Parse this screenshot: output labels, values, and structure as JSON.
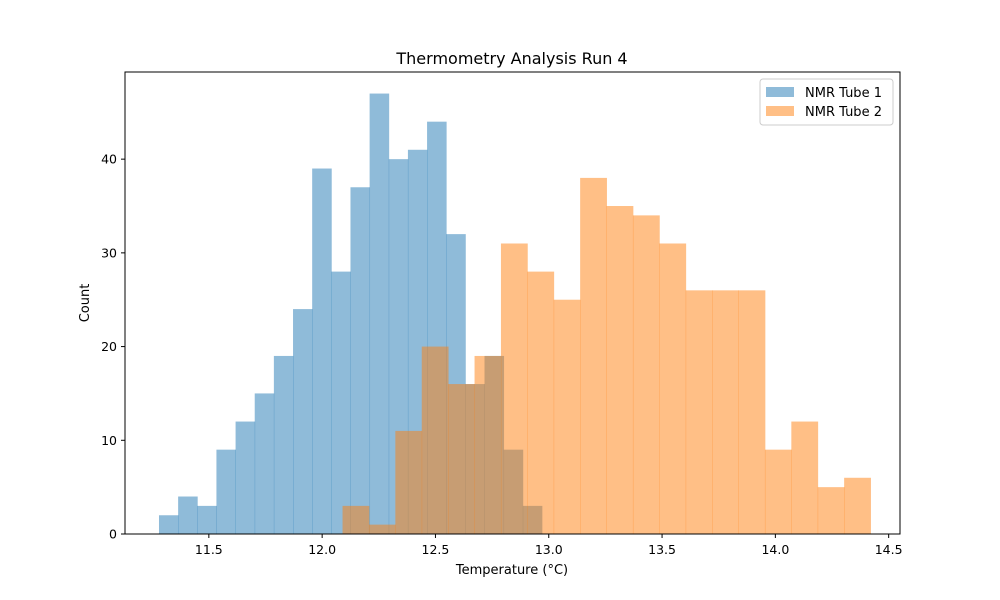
{
  "chart_data": {
    "type": "bar",
    "title": "Thermometry Analysis Run 4",
    "xlabel": "Temperature (°C)",
    "ylabel": "Count",
    "xlim": [
      11.13,
      14.55
    ],
    "ylim": [
      0,
      49.3
    ],
    "xticks": [
      11.5,
      12.0,
      12.5,
      13.0,
      13.5,
      14.0,
      14.5
    ],
    "xtick_labels": [
      "11.5",
      "12.0",
      "12.5",
      "13.0",
      "13.5",
      "14.0",
      "14.5"
    ],
    "yticks": [
      0,
      10,
      20,
      30,
      40
    ],
    "ytick_labels": [
      "0",
      "10",
      "20",
      "30",
      "40"
    ],
    "grid": false,
    "legend_position": "top-right",
    "series": [
      {
        "name": "NMR Tube 1",
        "color": "#1f77b4",
        "opacity": 0.5,
        "bin_start": 11.28,
        "bin_width": 0.0845,
        "counts": [
          2,
          4,
          3,
          9,
          12,
          15,
          19,
          24,
          39,
          28,
          37,
          47,
          40,
          41,
          44,
          32,
          16,
          19,
          9,
          3
        ]
      },
      {
        "name": "NMR Tube 2",
        "color": "#ff7f0e",
        "opacity": 0.5,
        "bin_start": 12.09,
        "bin_width": 0.1165,
        "counts": [
          3,
          1,
          11,
          20,
          16,
          19,
          31,
          28,
          25,
          38,
          35,
          34,
          31,
          26,
          26,
          26,
          9,
          12,
          5,
          6
        ]
      }
    ]
  }
}
